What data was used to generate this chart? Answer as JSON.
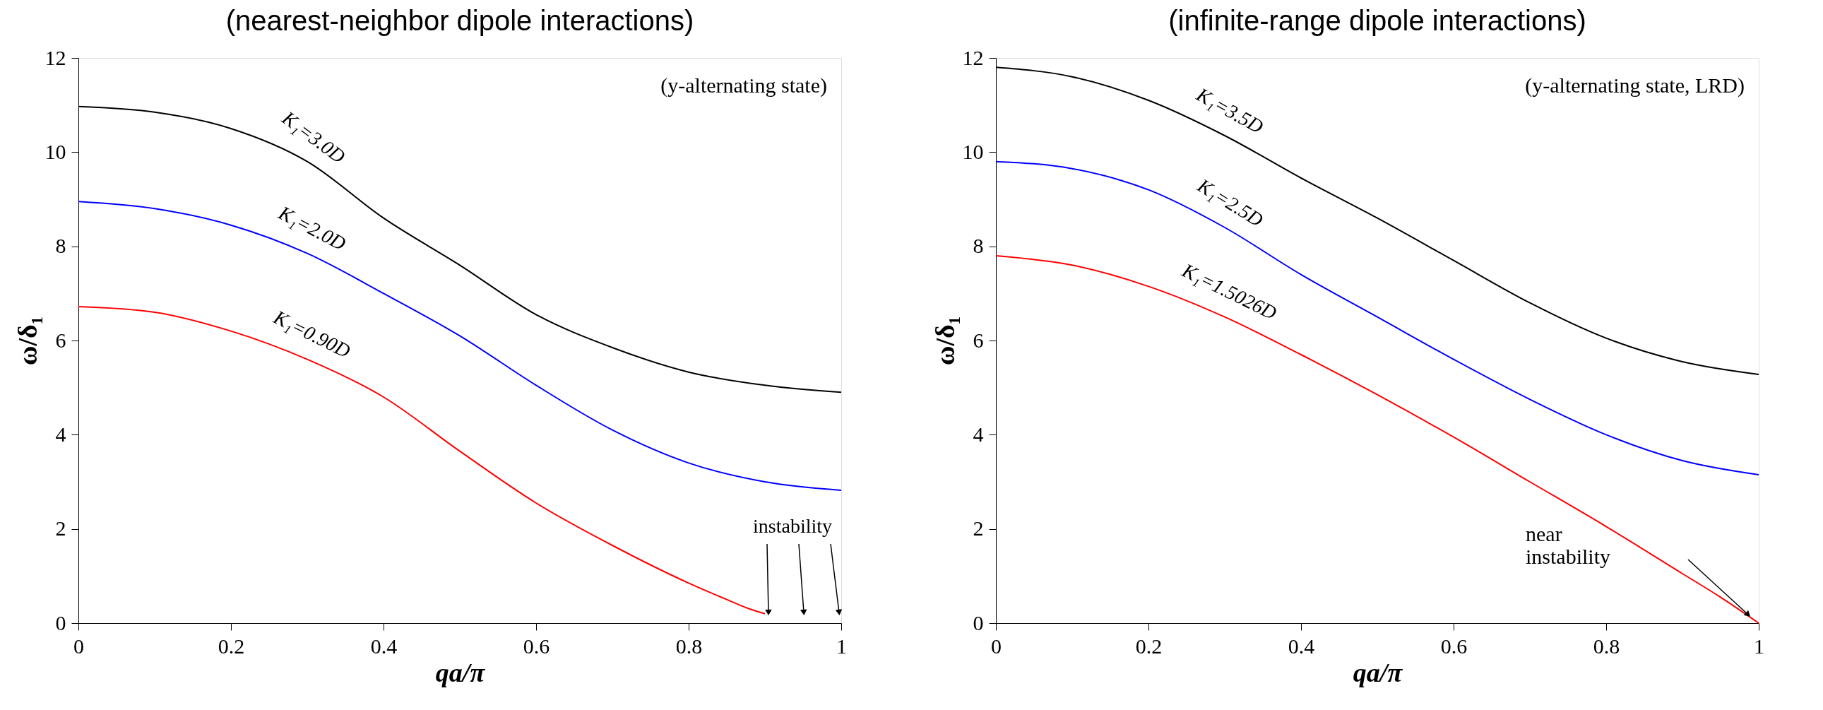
{
  "chart_data": [
    {
      "type": "line",
      "title": "(nearest-neighbor dipole interactions)",
      "xlabel": "qa/π",
      "ylabel": "ω/δ₁",
      "xlim": [
        0,
        1
      ],
      "ylim": [
        0,
        12
      ],
      "xticks": [
        0,
        0.2,
        0.4,
        0.6,
        0.8,
        1
      ],
      "yticks": [
        0,
        2,
        4,
        6,
        8,
        10,
        12
      ],
      "grid": false,
      "legend": false,
      "marker": "none",
      "line_style": "solid",
      "annotations": [
        "(y-alternating state)",
        "instability"
      ],
      "series": [
        {
          "name": "K₁=3.0D",
          "color": "#000000",
          "x": [
            0,
            0.1,
            0.2,
            0.3,
            0.4,
            0.5,
            0.6,
            0.7,
            0.8,
            0.9,
            1
          ],
          "values": [
            10.97,
            10.85,
            10.5,
            9.8,
            8.6,
            7.6,
            6.55,
            5.85,
            5.33,
            5.05,
            4.9
          ]
        },
        {
          "name": "K₁=2.0D",
          "color": "#0000ff",
          "x": [
            0,
            0.1,
            0.2,
            0.3,
            0.4,
            0.5,
            0.6,
            0.7,
            0.8,
            0.9,
            1
          ],
          "values": [
            8.95,
            8.8,
            8.45,
            7.85,
            7.0,
            6.1,
            5.05,
            4.1,
            3.4,
            3.0,
            2.82
          ]
        },
        {
          "name": "K₁=0.90D",
          "color": "#ff0000",
          "x": [
            0,
            0.1,
            0.2,
            0.3,
            0.4,
            0.5,
            0.6,
            0.7,
            0.8,
            0.85,
            0.88,
            0.9
          ],
          "values": [
            6.72,
            6.6,
            6.2,
            5.6,
            4.8,
            3.65,
            2.55,
            1.65,
            0.85,
            0.5,
            0.3,
            0.2
          ]
        }
      ]
    },
    {
      "type": "line",
      "title": "(infinite-range dipole interactions)",
      "xlabel": "qa/π",
      "ylabel": "ω/δ₁",
      "xlim": [
        0,
        1
      ],
      "ylim": [
        0,
        12
      ],
      "xticks": [
        0,
        0.2,
        0.4,
        0.6,
        0.8,
        1
      ],
      "yticks": [
        0,
        2,
        4,
        6,
        8,
        10,
        12
      ],
      "grid": false,
      "legend": false,
      "marker": "none",
      "line_style": "solid",
      "annotations": [
        "(y-alternating state, LRD)",
        "near\ninstability"
      ],
      "series": [
        {
          "name": "K₁=3.5D",
          "color": "#000000",
          "x": [
            0,
            0.1,
            0.2,
            0.3,
            0.4,
            0.5,
            0.6,
            0.7,
            0.8,
            0.9,
            1
          ],
          "values": [
            11.8,
            11.6,
            11.1,
            10.35,
            9.45,
            8.6,
            7.7,
            6.8,
            6.05,
            5.55,
            5.28
          ]
        },
        {
          "name": "K₁=2.5D",
          "color": "#0000ff",
          "x": [
            0,
            0.1,
            0.2,
            0.3,
            0.4,
            0.5,
            0.6,
            0.7,
            0.8,
            0.9,
            1
          ],
          "values": [
            9.8,
            9.65,
            9.2,
            8.4,
            7.4,
            6.5,
            5.6,
            4.75,
            4.0,
            3.45,
            3.15
          ]
        },
        {
          "name": "K₁=1.5026D",
          "color": "#ff0000",
          "x": [
            0,
            0.1,
            0.2,
            0.3,
            0.4,
            0.5,
            0.6,
            0.7,
            0.8,
            0.9,
            0.95,
            1
          ],
          "values": [
            7.8,
            7.6,
            7.15,
            6.5,
            5.7,
            4.85,
            3.95,
            3.0,
            2.05,
            1.05,
            0.55,
            0
          ]
        }
      ]
    }
  ]
}
